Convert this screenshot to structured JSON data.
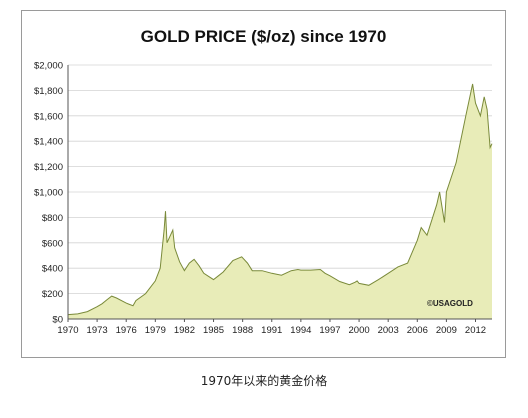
{
  "caption": "1970年以来的黄金价格",
  "chart_data": {
    "type": "area",
    "title": "GOLD PRICE ($/oz) since 1970",
    "xlabel": "",
    "ylabel": "",
    "copyright": "©USAGOLD",
    "xlim": [
      1970,
      2013.7
    ],
    "ylim": [
      0,
      2000
    ],
    "grid": true,
    "fill_color": "#e8ecb8",
    "line_color": "#7a8a3a",
    "yticks": [
      0,
      200,
      400,
      600,
      800,
      1000,
      1200,
      1400,
      1600,
      1800,
      2000
    ],
    "ytick_labels": [
      "$0",
      "$200",
      "$400",
      "$600",
      "$800",
      "$1,000",
      "$1,200",
      "$1,400",
      "$1,600",
      "$1,800",
      "$2,000"
    ],
    "xticks": [
      1970,
      1973,
      1976,
      1979,
      1982,
      1985,
      1988,
      1991,
      1994,
      1997,
      2000,
      2003,
      2006,
      2009,
      2012
    ],
    "xtick_labels": [
      "1970",
      "1973",
      "1976",
      "1979",
      "1982",
      "1985",
      "1988",
      "1991",
      "1994",
      "1997",
      "2000",
      "2003",
      "2006",
      "2009",
      "2012"
    ],
    "x": [
      1970,
      1971,
      1972,
      1973,
      1973.5,
      1974,
      1974.5,
      1975,
      1976,
      1976.7,
      1977,
      1978,
      1979,
      1979.5,
      1979.9,
      1980.05,
      1980.2,
      1980.5,
      1980.8,
      1981,
      1981.5,
      1982,
      1982.5,
      1983,
      1983.5,
      1984,
      1985,
      1985.5,
      1986,
      1987,
      1987.9,
      1988.5,
      1989,
      1990,
      1991,
      1992,
      1993,
      1993.7,
      1994,
      1995,
      1996,
      1996.5,
      1997,
      1998,
      1999,
      1999.6,
      1999.8,
      2000,
      2001,
      2002,
      2003,
      2004,
      2005,
      2006,
      2006.4,
      2007,
      2008,
      2008.3,
      2008.8,
      2009,
      2010,
      2011,
      2011.7,
      2012,
      2012.5,
      2012.9,
      2013.2,
      2013.5,
      2013.7
    ],
    "values": [
      35,
      40,
      58,
      97,
      120,
      150,
      180,
      165,
      125,
      105,
      145,
      200,
      300,
      400,
      700,
      850,
      600,
      650,
      700,
      560,
      450,
      380,
      440,
      470,
      420,
      360,
      310,
      340,
      370,
      460,
      490,
      440,
      380,
      380,
      360,
      345,
      380,
      390,
      385,
      385,
      390,
      360,
      340,
      295,
      270,
      290,
      300,
      280,
      265,
      310,
      360,
      410,
      440,
      620,
      720,
      660,
      900,
      1000,
      760,
      1000,
      1230,
      1600,
      1850,
      1700,
      1600,
      1750,
      1650,
      1350,
      1380
    ]
  }
}
